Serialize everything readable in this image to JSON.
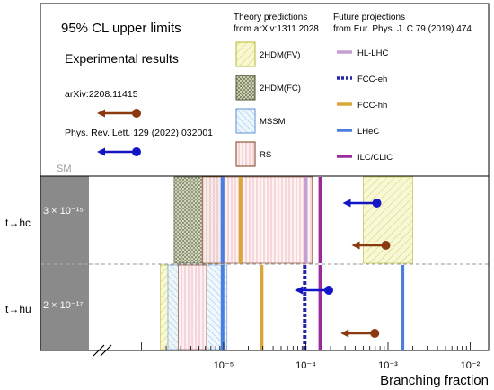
{
  "chart_data": {
    "type": "bar",
    "header": {
      "title": "95% CL upper limits",
      "experimental_heading": "Experimental results",
      "experimental": [
        {
          "ref": "arXiv:2208.11415",
          "color": "#8b3a0f"
        },
        {
          "ref": "Phys. Rev. Lett. 129 (2022) 032001",
          "color": "#1515c8"
        }
      ],
      "theory_heading_1": "Theory predictions",
      "theory_heading_2": "from arXiv:1311.2028",
      "theory_models": [
        {
          "name": "2HDM(FV)",
          "color": "#e6e68c",
          "edge": "#b8b830"
        },
        {
          "name": "2HDM(FC)",
          "color": "#a8ad7a",
          "edge": "#4a5030"
        },
        {
          "name": "MSSM",
          "color": "#bcd9f2",
          "edge": "#5a8fd6"
        },
        {
          "name": "RS",
          "color": "#f7dada",
          "edge": "#7a3a1a"
        }
      ],
      "future_heading_1": "Future projections",
      "future_heading_2": "from Eur. Phys. J. C 79 (2019) 474",
      "future": [
        {
          "name": "HL-LHC",
          "color": "#c4a0d0",
          "style": "solid"
        },
        {
          "name": "FCC-eh",
          "color": "#2525a8",
          "style": "dashed"
        },
        {
          "name": "FCC-hh",
          "color": "#d9a63a",
          "style": "solid"
        },
        {
          "name": "LHeC",
          "color": "#4a7fe0",
          "style": "solid"
        },
        {
          "name": "ILC/CLIC",
          "color": "#9a2a9a",
          "style": "solid"
        }
      ],
      "sm_label": "SM"
    },
    "channels": [
      {
        "label": "t→hc",
        "sm_value": "3 × 10⁻¹⁵",
        "theory": [
          {
            "model": "2HDM(FC)",
            "range": [
              2.5e-06,
              1e-05
            ]
          },
          {
            "model": "RS",
            "range": [
              5.5e-06,
              0.00012
            ]
          },
          {
            "model": "2HDM(FV)",
            "range": [
              0.0005,
              0.002
            ]
          }
        ],
        "future": [
          {
            "name": "LHeC",
            "value": 9.7e-06
          },
          {
            "name": "FCC-hh",
            "value": 1.6e-05
          },
          {
            "name": "HL-LHC",
            "value": 0.0001
          },
          {
            "name": "ILC/CLIC",
            "value": 0.00015
          }
        ],
        "experimental": [
          {
            "ref": "Phys. Rev. Lett. 129 (2022) 032001",
            "value": 0.00073
          },
          {
            "ref": "arXiv:2208.11415",
            "value": 0.00094
          }
        ]
      },
      {
        "label": "t→hu",
        "sm_value": "2 × 10⁻¹⁷",
        "theory": [
          {
            "model": "2HDM(FV)",
            "range": [
              1.7e-06,
              6.2e-06
            ]
          },
          {
            "model": "MSSM",
            "range": [
              2.1e-06,
              1.1e-05
            ]
          },
          {
            "model": "RS",
            "range": [
              2.8e-06,
              6.2e-06
            ]
          }
        ],
        "future": [
          {
            "name": "LHeC",
            "value": 9.7e-06
          },
          {
            "name": "FCC-hh",
            "value": 2.9e-05
          },
          {
            "name": "FCC-eh",
            "value": 9.7e-05
          },
          {
            "name": "ILC/CLIC",
            "value": 0.00015
          },
          {
            "name": "LHeC",
            "value": 0.0015
          }
        ],
        "experimental": [
          {
            "ref": "Phys. Rev. Lett. 129 (2022) 032001",
            "value": 0.00019
          },
          {
            "ref": "arXiv:2208.11415",
            "value": 0.00069
          }
        ]
      }
    ],
    "x_axis": {
      "label": "Branching fraction",
      "scale": "log",
      "xlim": [
        5e-08,
        0.04
      ],
      "ticks": [
        {
          "value": 1e-05,
          "label": "10⁻⁵"
        },
        {
          "value": 0.0001,
          "label": "10⁻⁴"
        },
        {
          "value": 0.001,
          "label": "10⁻³"
        },
        {
          "value": 0.01,
          "label": "10⁻²"
        }
      ]
    }
  }
}
